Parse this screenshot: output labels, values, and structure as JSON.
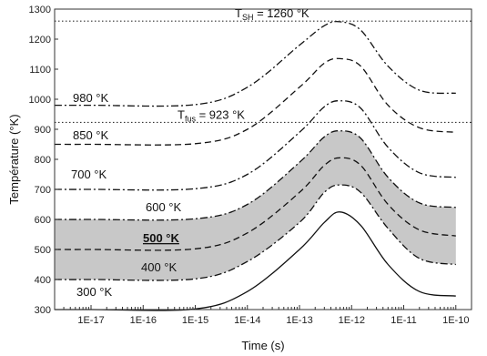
{
  "chart_data": {
    "type": "line",
    "xlabel": "Time (s)",
    "ylabel": "Température (°K)",
    "xscale": "log",
    "xlim": [
      2e-18,
      2e-10
    ],
    "ylim": [
      300,
      1300
    ],
    "x_ticks": [
      "1E-17",
      "1E-16",
      "1E-15",
      "1E-14",
      "1E-13",
      "1E-12",
      "1E-11",
      "1E-10"
    ],
    "y_ticks": [
      300,
      400,
      500,
      600,
      700,
      800,
      900,
      1000,
      1100,
      1200,
      1300
    ],
    "x": [
      1e-17,
      1e-15,
      1e-14,
      1e-13,
      3e-13,
      6e-13,
      1.5e-12,
      5e-12,
      2e-11,
      1e-10
    ],
    "series": [
      {
        "name": "300 °K",
        "style": "solid",
        "values": [
          300,
          302,
          360,
          500,
          590,
          625,
          580,
          450,
          360,
          345
        ]
      },
      {
        "name": "400 °K",
        "style": "dashdot",
        "values": [
          400,
          402,
          460,
          590,
          690,
          715,
          690,
          570,
          470,
          450
        ]
      },
      {
        "name": "500 °K",
        "style": "dashed",
        "values": [
          500,
          502,
          555,
          690,
          780,
          805,
          780,
          650,
          565,
          545
        ]
      },
      {
        "name": "600 °K",
        "style": "dashdot",
        "values": [
          600,
          602,
          650,
          790,
          875,
          895,
          870,
          740,
          655,
          640
        ]
      },
      {
        "name": "700 °K",
        "style": "dashdot",
        "values": [
          700,
          702,
          750,
          890,
          975,
          995,
          970,
          840,
          755,
          740
        ]
      },
      {
        "name": "850 °K",
        "style": "dashed",
        "values": [
          850,
          852,
          900,
          1040,
          1120,
          1135,
          1110,
          980,
          905,
          890
        ]
      },
      {
        "name": "980 °K",
        "style": "dashdot",
        "values": [
          980,
          982,
          1040,
          1180,
          1245,
          1258,
          1230,
          1110,
          1030,
          1020
        ]
      }
    ],
    "shaded_band": {
      "lower": "400 °K",
      "upper": "600 °K",
      "color": "#c8c8c8"
    },
    "reference_lines": [
      {
        "y": 1260,
        "label": "T",
        "subscript": "SH",
        "suffix": " = 1260 °K"
      },
      {
        "y": 923,
        "label": "T",
        "subscript": "fus",
        "suffix": " = 923 °K"
      }
    ],
    "series_labels": [
      "980 °K",
      "850 °K",
      "700 °K",
      "600 °K",
      "500 °K",
      "400 °K",
      "300 °K"
    ],
    "colors": {
      "line": "#111111",
      "band": "#c8c8c8",
      "frame": "#333333"
    }
  }
}
